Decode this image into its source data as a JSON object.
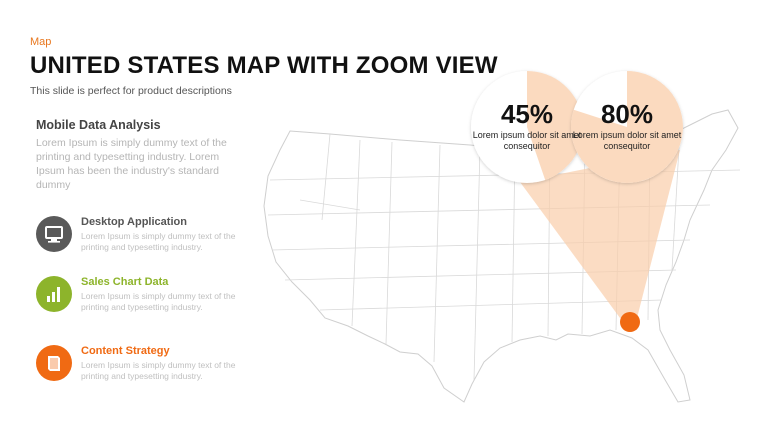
{
  "header": {
    "tag": "Map",
    "title": "UNITED STATES MAP WITH ZOOM VIEW",
    "subtitle": "This slide is perfect for product descriptions"
  },
  "mobile": {
    "heading": "Mobile  Data Analysis",
    "description": "Lorem Ipsum is simply dummy text of the printing and typesetting industry. Lorem Ipsum has been the industry's standard dummy"
  },
  "features": [
    {
      "title": "Desktop Application",
      "description": "Lorem Ipsum  is simply dummy text of the printing and typesetting industry.",
      "icon": "monitor-icon",
      "color": "#5a5a5a",
      "title_color": "#555555"
    },
    {
      "title": "Sales Chart Data",
      "description": "Lorem Ipsum  is simply dummy text of the printing and typesetting industry.",
      "icon": "bar-chart-icon",
      "color": "#8db42b",
      "title_color": "#8db42b"
    },
    {
      "title": "Content Strategy",
      "description": "Lorem Ipsum  is simply dummy text of the printing and typesetting industry.",
      "icon": "book-icon",
      "color": "#f06a13",
      "title_color": "#f06a13"
    }
  ],
  "zoom": [
    {
      "value": "45%",
      "fill_fraction": 0.45,
      "description": "Lorem ipsum dolor sit amet consequitor"
    },
    {
      "value": "80%",
      "fill_fraction": 0.8,
      "description": "Lorem ipsum dolor sit amet consequitor"
    }
  ],
  "colors": {
    "accent": "#f06a13",
    "zoom_fill": "#f9cda9",
    "map_stroke": "#cfcfcf"
  }
}
